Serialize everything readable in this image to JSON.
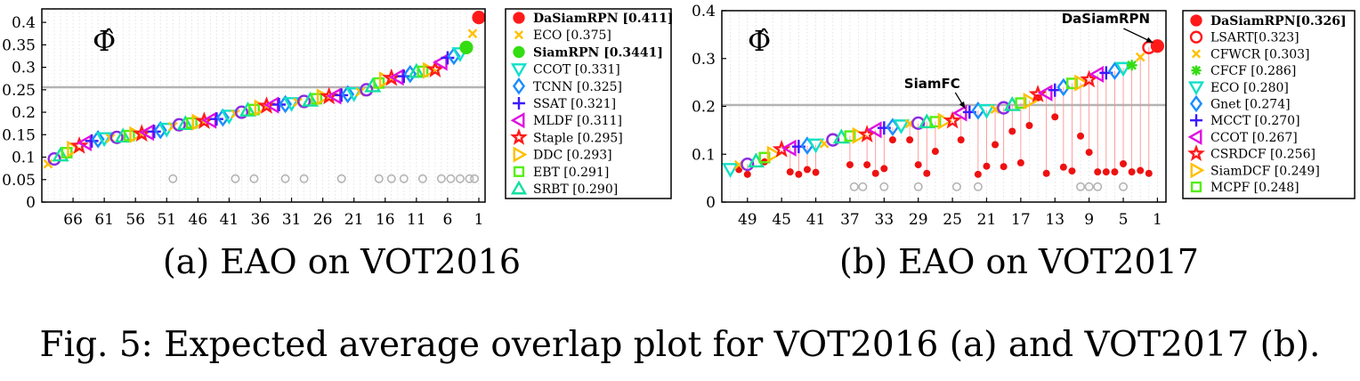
{
  "figure_caption": "Fig. 5: Expected average overlap plot for VOT2016 (a) and VOT2017 (b).",
  "colors": {
    "threshold_line": "#b4b4b4",
    "grid": "#dddddd",
    "unranked_marker": "#b4b4b4",
    "connector": "#ff8a8a",
    "frame": "#000000"
  },
  "chart_data": [
    {
      "type": "scatter",
      "subplot_caption": "(a) EAO on VOT2016",
      "symbol_label": "Φ̂",
      "xlabel": "",
      "ylabel": "",
      "x_direction": "reversed",
      "x_tick_labels": [
        "66",
        "61",
        "56",
        "51",
        "46",
        "41",
        "36",
        "31",
        "26",
        "21",
        "16",
        "11",
        "6",
        "1"
      ],
      "x_tick_ranks": [
        66,
        61,
        56,
        51,
        46,
        41,
        36,
        31,
        26,
        21,
        16,
        11,
        6,
        1
      ],
      "xlim": [
        71,
        0
      ],
      "ylim": [
        0,
        0.43
      ],
      "y_tick_labels": [
        "0",
        "0.05",
        "0.1",
        "0.15",
        "0.2",
        "0.25",
        "0.3",
        "0.35",
        "0.4"
      ],
      "y_ticks": [
        0,
        0.05,
        0.1,
        0.15,
        0.2,
        0.25,
        0.3,
        0.35,
        0.4
      ],
      "threshold": 0.255,
      "legend_position": "right",
      "legend": [
        {
          "label": "DaSiamRPN [0.411]",
          "bold": true,
          "marker": "filled-circle",
          "color": "#ff1a1a"
        },
        {
          "label": "ECO [0.375]",
          "bold": false,
          "marker": "x",
          "color": "#ffc000"
        },
        {
          "label": "SiamRPN [0.3441]",
          "bold": true,
          "marker": "filled-circle",
          "color": "#33dd11"
        },
        {
          "label": "CCOT [0.331]",
          "bold": false,
          "marker": "triangle-down",
          "color": "#10e0c8"
        },
        {
          "label": "TCNN [0.325]",
          "bold": false,
          "marker": "diamond",
          "color": "#1a8cff"
        },
        {
          "label": "SSAT [0.321]",
          "bold": false,
          "marker": "plus",
          "color": "#3a1aff"
        },
        {
          "label": "MLDF [0.311]",
          "bold": false,
          "marker": "triangle-left",
          "color": "#e010e0"
        },
        {
          "label": "Staple [0.295]",
          "bold": false,
          "marker": "star",
          "color": "#ff1a1a"
        },
        {
          "label": "DDC [0.293]",
          "bold": false,
          "marker": "triangle-right",
          "color": "#ffc000"
        },
        {
          "label": "EBT [0.291]",
          "bold": false,
          "marker": "square",
          "color": "#55ee11"
        },
        {
          "label": "SRBT [0.290]",
          "bold": false,
          "marker": "triangle-up",
          "color": "#10e0a0"
        }
      ],
      "series": [
        {
          "rank": 1,
          "value": 0.411
        },
        {
          "rank": 2,
          "value": 0.375
        },
        {
          "rank": 3,
          "value": 0.344
        },
        {
          "rank": 4,
          "value": 0.331
        },
        {
          "rank": 5,
          "value": 0.325
        },
        {
          "rank": 6,
          "value": 0.321
        },
        {
          "rank": 7,
          "value": 0.311
        },
        {
          "rank": 8,
          "value": 0.295
        },
        {
          "rank": 9,
          "value": 0.293
        },
        {
          "rank": 10,
          "value": 0.291
        },
        {
          "rank": 11,
          "value": 0.29
        },
        {
          "rank": 12,
          "value": 0.285
        },
        {
          "rank": 13,
          "value": 0.28
        },
        {
          "rank": 14,
          "value": 0.278
        },
        {
          "rank": 15,
          "value": 0.276
        },
        {
          "rank": 16,
          "value": 0.272
        },
        {
          "rank": 17,
          "value": 0.265
        },
        {
          "rank": 18,
          "value": 0.258
        },
        {
          "rank": 19,
          "value": 0.25
        },
        {
          "rank": 20,
          "value": 0.245
        },
        {
          "rank": 21,
          "value": 0.242
        },
        {
          "rank": 22,
          "value": 0.24
        },
        {
          "rank": 23,
          "value": 0.238
        },
        {
          "rank": 24,
          "value": 0.236
        },
        {
          "rank": 25,
          "value": 0.235
        },
        {
          "rank": 26,
          "value": 0.234
        },
        {
          "rank": 27,
          "value": 0.23
        },
        {
          "rank": 28,
          "value": 0.226
        },
        {
          "rank": 29,
          "value": 0.224
        },
        {
          "rank": 30,
          "value": 0.222
        },
        {
          "rank": 31,
          "value": 0.22
        },
        {
          "rank": 32,
          "value": 0.218
        },
        {
          "rank": 33,
          "value": 0.217
        },
        {
          "rank": 34,
          "value": 0.216
        },
        {
          "rank": 35,
          "value": 0.214
        },
        {
          "rank": 36,
          "value": 0.21
        },
        {
          "rank": 37,
          "value": 0.206
        },
        {
          "rank": 38,
          "value": 0.204
        },
        {
          "rank": 39,
          "value": 0.2
        },
        {
          "rank": 40,
          "value": 0.196
        },
        {
          "rank": 41,
          "value": 0.192
        },
        {
          "rank": 42,
          "value": 0.188
        },
        {
          "rank": 43,
          "value": 0.185
        },
        {
          "rank": 44,
          "value": 0.182
        },
        {
          "rank": 45,
          "value": 0.18
        },
        {
          "rank": 46,
          "value": 0.178
        },
        {
          "rank": 47,
          "value": 0.176
        },
        {
          "rank": 48,
          "value": 0.174
        },
        {
          "rank": 49,
          "value": 0.172
        },
        {
          "rank": 50,
          "value": 0.168
        },
        {
          "rank": 51,
          "value": 0.163
        },
        {
          "rank": 52,
          "value": 0.16
        },
        {
          "rank": 53,
          "value": 0.157
        },
        {
          "rank": 54,
          "value": 0.155
        },
        {
          "rank": 55,
          "value": 0.152
        },
        {
          "rank": 56,
          "value": 0.15
        },
        {
          "rank": 57,
          "value": 0.148
        },
        {
          "rank": 58,
          "value": 0.146
        },
        {
          "rank": 59,
          "value": 0.144
        },
        {
          "rank": 60,
          "value": 0.142
        },
        {
          "rank": 61,
          "value": 0.142
        },
        {
          "rank": 62,
          "value": 0.14
        },
        {
          "rank": 63,
          "value": 0.136
        },
        {
          "rank": 64,
          "value": 0.132
        },
        {
          "rank": 65,
          "value": 0.125
        },
        {
          "rank": 66,
          "value": 0.118
        },
        {
          "rank": 67,
          "value": 0.11
        },
        {
          "rank": 68,
          "value": 0.104
        },
        {
          "rank": 69,
          "value": 0.096
        },
        {
          "rank": 70,
          "value": 0.085
        }
      ],
      "unranked_points": [
        {
          "rank": 50,
          "value": 0.052
        },
        {
          "rank": 40,
          "value": 0.052
        },
        {
          "rank": 37,
          "value": 0.052
        },
        {
          "rank": 32,
          "value": 0.052
        },
        {
          "rank": 29,
          "value": 0.052
        },
        {
          "rank": 23,
          "value": 0.052
        },
        {
          "rank": 17,
          "value": 0.052
        },
        {
          "rank": 15,
          "value": 0.052
        },
        {
          "rank": 13,
          "value": 0.052
        },
        {
          "rank": 10,
          "value": 0.052
        },
        {
          "rank": 7,
          "value": 0.052
        },
        {
          "rank": 5.5,
          "value": 0.052
        },
        {
          "rank": 4,
          "value": 0.052
        },
        {
          "rank": 2.5,
          "value": 0.052
        },
        {
          "rank": 1.7,
          "value": 0.052
        }
      ],
      "connectors": [],
      "annotations": []
    },
    {
      "type": "scatter",
      "subplot_caption": "(b) EAO on VOT2017",
      "symbol_label": "Φ̂",
      "xlabel": "",
      "ylabel": "",
      "x_direction": "reversed",
      "x_tick_labels": [
        "49",
        "45",
        "41",
        "37",
        "33",
        "29",
        "25",
        "21",
        "17",
        "13",
        "9",
        "5",
        "1"
      ],
      "x_tick_ranks": [
        49,
        45,
        41,
        37,
        33,
        29,
        25,
        21,
        17,
        13,
        9,
        5,
        1
      ],
      "xlim": [
        52,
        0
      ],
      "ylim": [
        0,
        0.4
      ],
      "y_tick_labels": [
        "0",
        "0.1",
        "0.2",
        "0.3",
        "0.4"
      ],
      "y_ticks": [
        0,
        0.1,
        0.2,
        0.3,
        0.4
      ],
      "threshold": 0.201,
      "legend_position": "right",
      "legend": [
        {
          "label": "DaSiamRPN[0.326]",
          "bold": true,
          "marker": "filled-circle",
          "color": "#ff1a1a"
        },
        {
          "label": "LSART[0.323]",
          "bold": false,
          "marker": "circle",
          "color": "#ff1a1a"
        },
        {
          "label": "CFWCR [0.303]",
          "bold": false,
          "marker": "x",
          "color": "#ffc000"
        },
        {
          "label": "CFCF [0.286]",
          "bold": false,
          "marker": "asterisk",
          "color": "#33dd11"
        },
        {
          "label": "ECO [0.280]",
          "bold": false,
          "marker": "triangle-down",
          "color": "#10e0c8"
        },
        {
          "label": "Gnet [0.274]",
          "bold": false,
          "marker": "diamond",
          "color": "#1a8cff"
        },
        {
          "label": "MCCT [0.270]",
          "bold": false,
          "marker": "plus",
          "color": "#3a1aff"
        },
        {
          "label": "CCOT [0.267]",
          "bold": false,
          "marker": "triangle-left",
          "color": "#e010e0"
        },
        {
          "label": "CSRDCF [0.256]",
          "bold": false,
          "marker": "star",
          "color": "#ff1a1a"
        },
        {
          "label": "SiamDCF [0.249]",
          "bold": false,
          "marker": "triangle-right",
          "color": "#ffc000"
        },
        {
          "label": "MCPF [0.248]",
          "bold": false,
          "marker": "square",
          "color": "#55ee11"
        }
      ],
      "series": [
        {
          "rank": 1,
          "value": 0.326
        },
        {
          "rank": 2,
          "value": 0.323
        },
        {
          "rank": 3,
          "value": 0.303
        },
        {
          "rank": 4,
          "value": 0.286
        },
        {
          "rank": 5,
          "value": 0.28
        },
        {
          "rank": 6,
          "value": 0.274
        },
        {
          "rank": 7,
          "value": 0.27
        },
        {
          "rank": 8,
          "value": 0.267
        },
        {
          "rank": 9,
          "value": 0.256
        },
        {
          "rank": 10,
          "value": 0.249
        },
        {
          "rank": 11,
          "value": 0.248
        },
        {
          "rank": 12,
          "value": 0.24
        },
        {
          "rank": 13,
          "value": 0.234
        },
        {
          "rank": 14,
          "value": 0.228
        },
        {
          "rank": 15,
          "value": 0.225
        },
        {
          "rank": 16,
          "value": 0.211
        },
        {
          "rank": 17,
          "value": 0.207
        },
        {
          "rank": 18,
          "value": 0.203
        },
        {
          "rank": 19,
          "value": 0.197
        },
        {
          "rank": 20,
          "value": 0.194
        },
        {
          "rank": 21,
          "value": 0.192
        },
        {
          "rank": 22,
          "value": 0.191
        },
        {
          "rank": 23,
          "value": 0.188
        },
        {
          "rank": 24,
          "value": 0.186
        },
        {
          "rank": 25,
          "value": 0.17
        },
        {
          "rank": 26,
          "value": 0.169
        },
        {
          "rank": 27,
          "value": 0.168
        },
        {
          "rank": 28,
          "value": 0.167
        },
        {
          "rank": 29,
          "value": 0.165
        },
        {
          "rank": 30,
          "value": 0.164
        },
        {
          "rank": 31,
          "value": 0.16
        },
        {
          "rank": 32,
          "value": 0.157
        },
        {
          "rank": 33,
          "value": 0.155
        },
        {
          "rank": 34,
          "value": 0.151
        },
        {
          "rank": 35,
          "value": 0.141
        },
        {
          "rank": 36,
          "value": 0.139
        },
        {
          "rank": 37,
          "value": 0.138
        },
        {
          "rank": 38,
          "value": 0.135
        },
        {
          "rank": 39,
          "value": 0.13
        },
        {
          "rank": 40,
          "value": 0.122
        },
        {
          "rank": 41,
          "value": 0.12
        },
        {
          "rank": 42,
          "value": 0.118
        },
        {
          "rank": 43,
          "value": 0.116
        },
        {
          "rank": 44,
          "value": 0.113
        },
        {
          "rank": 45,
          "value": 0.11
        },
        {
          "rank": 46,
          "value": 0.1
        },
        {
          "rank": 47,
          "value": 0.093
        },
        {
          "rank": 48,
          "value": 0.085
        },
        {
          "rank": 49,
          "value": 0.079
        },
        {
          "rank": 50,
          "value": 0.078
        },
        {
          "rank": 51,
          "value": 0.069
        }
      ],
      "unranked_points": [
        {
          "rank": 36.5,
          "value": 0.032
        },
        {
          "rank": 35.5,
          "value": 0.032
        },
        {
          "rank": 33,
          "value": 0.032
        },
        {
          "rank": 29,
          "value": 0.032
        },
        {
          "rank": 24.5,
          "value": 0.032
        },
        {
          "rank": 22,
          "value": 0.032
        },
        {
          "rank": 10,
          "value": 0.032
        },
        {
          "rank": 9,
          "value": 0.032
        },
        {
          "rank": 8,
          "value": 0.032
        },
        {
          "rank": 5,
          "value": 0.032
        }
      ],
      "connectors": [
        {
          "rank": 50,
          "value": 0.068
        },
        {
          "rank": 49,
          "value": 0.058
        },
        {
          "rank": 47,
          "value": 0.084
        },
        {
          "rank": 44,
          "value": 0.063
        },
        {
          "rank": 43,
          "value": 0.058
        },
        {
          "rank": 42,
          "value": 0.068
        },
        {
          "rank": 41,
          "value": 0.062
        },
        {
          "rank": 37,
          "value": 0.078
        },
        {
          "rank": 35,
          "value": 0.078
        },
        {
          "rank": 34,
          "value": 0.06
        },
        {
          "rank": 33,
          "value": 0.07
        },
        {
          "rank": 32,
          "value": 0.13
        },
        {
          "rank": 30,
          "value": 0.13
        },
        {
          "rank": 29,
          "value": 0.078
        },
        {
          "rank": 28,
          "value": 0.06
        },
        {
          "rank": 27,
          "value": 0.106
        },
        {
          "rank": 24,
          "value": 0.13
        },
        {
          "rank": 22,
          "value": 0.058
        },
        {
          "rank": 21,
          "value": 0.075
        },
        {
          "rank": 20,
          "value": 0.12
        },
        {
          "rank": 19,
          "value": 0.074
        },
        {
          "rank": 18,
          "value": 0.148
        },
        {
          "rank": 17,
          "value": 0.082
        },
        {
          "rank": 16,
          "value": 0.16
        },
        {
          "rank": 15,
          "value": 0.218
        },
        {
          "rank": 14,
          "value": 0.06
        },
        {
          "rank": 13,
          "value": 0.178
        },
        {
          "rank": 12,
          "value": 0.073
        },
        {
          "rank": 11,
          "value": 0.065
        },
        {
          "rank": 10,
          "value": 0.138
        },
        {
          "rank": 9,
          "value": 0.104
        },
        {
          "rank": 8,
          "value": 0.063
        },
        {
          "rank": 7,
          "value": 0.063
        },
        {
          "rank": 6,
          "value": 0.063
        },
        {
          "rank": 5,
          "value": 0.08
        },
        {
          "rank": 4,
          "value": 0.063
        },
        {
          "rank": 3,
          "value": 0.066
        },
        {
          "rank": 2,
          "value": 0.06
        },
        {
          "rank": 1,
          "value": 0.326
        }
      ],
      "annotations": [
        {
          "text": "DaSiamRPN",
          "target_rank": 1,
          "target_value": 0.326
        },
        {
          "text": "SiamFC",
          "target_rank": 23,
          "target_value": 0.188
        }
      ]
    }
  ]
}
